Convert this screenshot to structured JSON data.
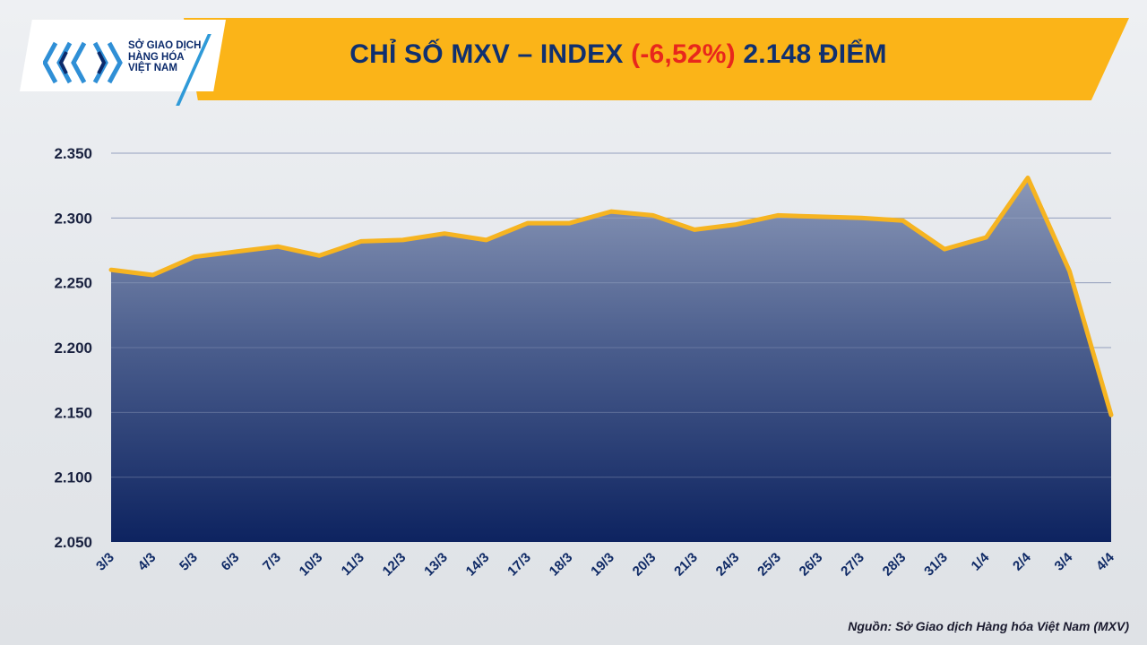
{
  "header": {
    "logo_name": "Sở Giao Dịch Hàng Hóa Việt Nam",
    "logo_lines": [
      "SỞ GIAO DỊCH",
      "HÀNG HÓA",
      "VIỆT NAM"
    ],
    "title_prefix": "CHỈ SỐ MXV – INDEX",
    "title_change": "(-6,52%)",
    "title_suffix": "2.148 ĐIỂM"
  },
  "colors": {
    "banner": "#fbb418",
    "line": "#f6b421",
    "area_top": "#8b98b8",
    "area_bottom": "#0d2360",
    "title": "#10306f",
    "change": "#e8271c"
  },
  "chart_data": {
    "type": "area",
    "x": [
      "3/3",
      "4/3",
      "5/3",
      "6/3",
      "7/3",
      "10/3",
      "11/3",
      "12/3",
      "13/3",
      "14/3",
      "17/3",
      "18/3",
      "19/3",
      "20/3",
      "21/3",
      "24/3",
      "25/3",
      "26/3",
      "27/3",
      "28/3",
      "31/3",
      "1/4",
      "2/4",
      "3/4",
      "4/4"
    ],
    "series": [
      {
        "values": [
          2260,
          2256,
          2270,
          2274,
          2278,
          2271,
          2282,
          2283,
          2288,
          2283,
          2296,
          2296,
          2305,
          2302,
          2291,
          2295,
          2302,
          2301,
          2300,
          2298,
          2276,
          2285,
          2331,
          2259,
          2148
        ]
      }
    ],
    "y_ticks": [
      "2.050",
      "2.100",
      "2.150",
      "2.200",
      "2.250",
      "2.300",
      "2.350"
    ],
    "y_tick_values": [
      2050,
      2100,
      2150,
      2200,
      2250,
      2300,
      2350
    ],
    "ylim": [
      2050,
      2350
    ],
    "grid": true,
    "legend": "none"
  },
  "footer": {
    "source": "Nguồn: Sở Giao dịch Hàng hóa Việt Nam (MXV)"
  }
}
